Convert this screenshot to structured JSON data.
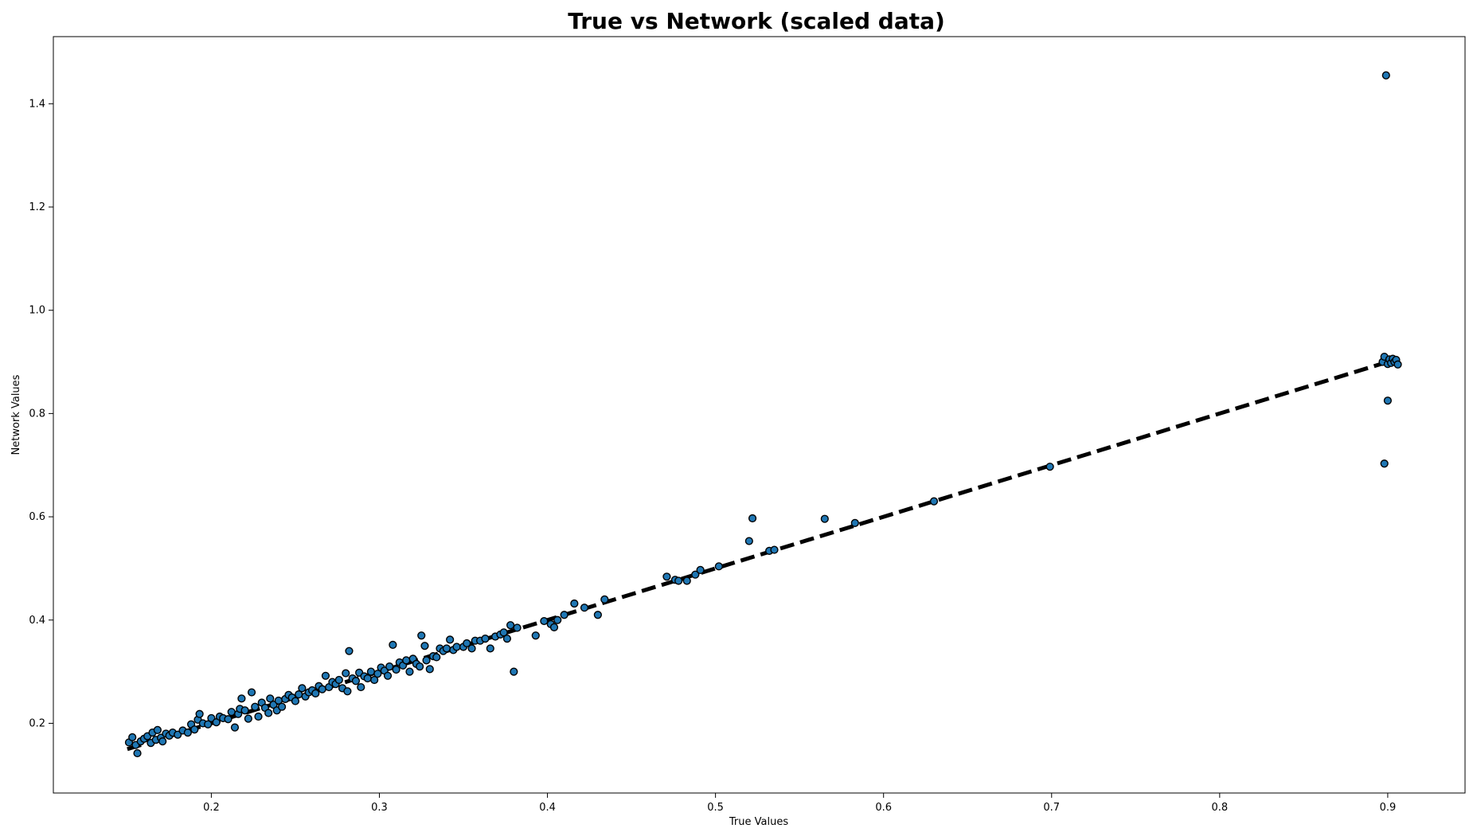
{
  "chart_data": {
    "type": "scatter",
    "title": "True vs Network (scaled data)",
    "xlabel": "True Values",
    "ylabel": "Network Values",
    "xlim": [
      0.106,
      0.946
    ],
    "ylim": [
      0.065,
      1.53
    ],
    "x_ticks": [
      "0.2",
      "0.3",
      "0.4",
      "0.5",
      "0.6",
      "0.7",
      "0.8",
      "0.9"
    ],
    "y_ticks": [
      "0.2",
      "0.4",
      "0.6",
      "0.8",
      "1.0",
      "1.2",
      "1.4"
    ],
    "grid": false,
    "legend": "none",
    "point_color": "#1f77b4",
    "point_edge_color": "#000000",
    "reference_line": {
      "style": "dashed",
      "color": "#000000",
      "from": [
        0.15,
        0.15
      ],
      "to": [
        0.905,
        0.905
      ]
    },
    "series": [
      {
        "points": [
          [
            0.151,
            0.163
          ],
          [
            0.153,
            0.173
          ],
          [
            0.155,
            0.158
          ],
          [
            0.156,
            0.142
          ],
          [
            0.158,
            0.165
          ],
          [
            0.16,
            0.17
          ],
          [
            0.162,
            0.175
          ],
          [
            0.164,
            0.162
          ],
          [
            0.165,
            0.182
          ],
          [
            0.167,
            0.168
          ],
          [
            0.168,
            0.187
          ],
          [
            0.17,
            0.172
          ],
          [
            0.171,
            0.165
          ],
          [
            0.173,
            0.18
          ],
          [
            0.175,
            0.176
          ],
          [
            0.177,
            0.182
          ],
          [
            0.18,
            0.178
          ],
          [
            0.183,
            0.186
          ],
          [
            0.186,
            0.182
          ],
          [
            0.188,
            0.198
          ],
          [
            0.19,
            0.188
          ],
          [
            0.192,
            0.207
          ],
          [
            0.193,
            0.218
          ],
          [
            0.195,
            0.2
          ],
          [
            0.198,
            0.198
          ],
          [
            0.2,
            0.21
          ],
          [
            0.203,
            0.202
          ],
          [
            0.205,
            0.213
          ],
          [
            0.207,
            0.21
          ],
          [
            0.21,
            0.208
          ],
          [
            0.212,
            0.222
          ],
          [
            0.214,
            0.192
          ],
          [
            0.216,
            0.218
          ],
          [
            0.217,
            0.228
          ],
          [
            0.218,
            0.248
          ],
          [
            0.22,
            0.225
          ],
          [
            0.222,
            0.209
          ],
          [
            0.224,
            0.26
          ],
          [
            0.226,
            0.232
          ],
          [
            0.228,
            0.213
          ],
          [
            0.23,
            0.24
          ],
          [
            0.232,
            0.23
          ],
          [
            0.234,
            0.22
          ],
          [
            0.235,
            0.248
          ],
          [
            0.237,
            0.236
          ],
          [
            0.239,
            0.225
          ],
          [
            0.24,
            0.244
          ],
          [
            0.242,
            0.232
          ],
          [
            0.244,
            0.247
          ],
          [
            0.246,
            0.255
          ],
          [
            0.248,
            0.25
          ],
          [
            0.25,
            0.243
          ],
          [
            0.252,
            0.256
          ],
          [
            0.254,
            0.268
          ],
          [
            0.256,
            0.252
          ],
          [
            0.258,
            0.26
          ],
          [
            0.26,
            0.264
          ],
          [
            0.262,
            0.258
          ],
          [
            0.264,
            0.272
          ],
          [
            0.266,
            0.266
          ],
          [
            0.268,
            0.292
          ],
          [
            0.27,
            0.27
          ],
          [
            0.272,
            0.28
          ],
          [
            0.274,
            0.276
          ],
          [
            0.276,
            0.284
          ],
          [
            0.278,
            0.268
          ],
          [
            0.28,
            0.297
          ],
          [
            0.281,
            0.262
          ],
          [
            0.282,
            0.34
          ],
          [
            0.284,
            0.287
          ],
          [
            0.286,
            0.282
          ],
          [
            0.288,
            0.298
          ],
          [
            0.289,
            0.27
          ],
          [
            0.291,
            0.291
          ],
          [
            0.293,
            0.287
          ],
          [
            0.295,
            0.3
          ],
          [
            0.297,
            0.284
          ],
          [
            0.299,
            0.296
          ],
          [
            0.301,
            0.308
          ],
          [
            0.303,
            0.302
          ],
          [
            0.305,
            0.292
          ],
          [
            0.306,
            0.31
          ],
          [
            0.308,
            0.352
          ],
          [
            0.31,
            0.304
          ],
          [
            0.312,
            0.318
          ],
          [
            0.314,
            0.312
          ],
          [
            0.316,
            0.322
          ],
          [
            0.318,
            0.3
          ],
          [
            0.32,
            0.325
          ],
          [
            0.322,
            0.315
          ],
          [
            0.324,
            0.31
          ],
          [
            0.325,
            0.37
          ],
          [
            0.327,
            0.35
          ],
          [
            0.328,
            0.322
          ],
          [
            0.33,
            0.305
          ],
          [
            0.332,
            0.33
          ],
          [
            0.334,
            0.328
          ],
          [
            0.336,
            0.345
          ],
          [
            0.338,
            0.34
          ],
          [
            0.34,
            0.345
          ],
          [
            0.342,
            0.362
          ],
          [
            0.344,
            0.342
          ],
          [
            0.346,
            0.348
          ],
          [
            0.35,
            0.348
          ],
          [
            0.352,
            0.355
          ],
          [
            0.355,
            0.345
          ],
          [
            0.357,
            0.36
          ],
          [
            0.36,
            0.36
          ],
          [
            0.363,
            0.364
          ],
          [
            0.366,
            0.345
          ],
          [
            0.369,
            0.368
          ],
          [
            0.372,
            0.372
          ],
          [
            0.374,
            0.376
          ],
          [
            0.376,
            0.364
          ],
          [
            0.378,
            0.39
          ],
          [
            0.38,
            0.3
          ],
          [
            0.382,
            0.385
          ],
          [
            0.393,
            0.37
          ],
          [
            0.398,
            0.398
          ],
          [
            0.402,
            0.392
          ],
          [
            0.404,
            0.386
          ],
          [
            0.406,
            0.4
          ],
          [
            0.41,
            0.41
          ],
          [
            0.416,
            0.432
          ],
          [
            0.422,
            0.424
          ],
          [
            0.43,
            0.41
          ],
          [
            0.434,
            0.44
          ],
          [
            0.471,
            0.484
          ],
          [
            0.476,
            0.478
          ],
          [
            0.478,
            0.476
          ],
          [
            0.483,
            0.476
          ],
          [
            0.488,
            0.488
          ],
          [
            0.491,
            0.497
          ],
          [
            0.502,
            0.504
          ],
          [
            0.52,
            0.553
          ],
          [
            0.522,
            0.597
          ],
          [
            0.532,
            0.534
          ],
          [
            0.535,
            0.536
          ],
          [
            0.565,
            0.596
          ],
          [
            0.583,
            0.588
          ],
          [
            0.63,
            0.63
          ],
          [
            0.699,
            0.697
          ],
          [
            0.897,
            0.9
          ],
          [
            0.898,
            0.91
          ],
          [
            0.898,
            0.703
          ],
          [
            0.899,
            1.455
          ],
          [
            0.9,
            0.825
          ],
          [
            0.9,
            0.896
          ],
          [
            0.901,
            0.905
          ],
          [
            0.902,
            0.898
          ],
          [
            0.903,
            0.906
          ],
          [
            0.904,
            0.9
          ],
          [
            0.905,
            0.904
          ],
          [
            0.906,
            0.895
          ]
        ]
      }
    ]
  }
}
